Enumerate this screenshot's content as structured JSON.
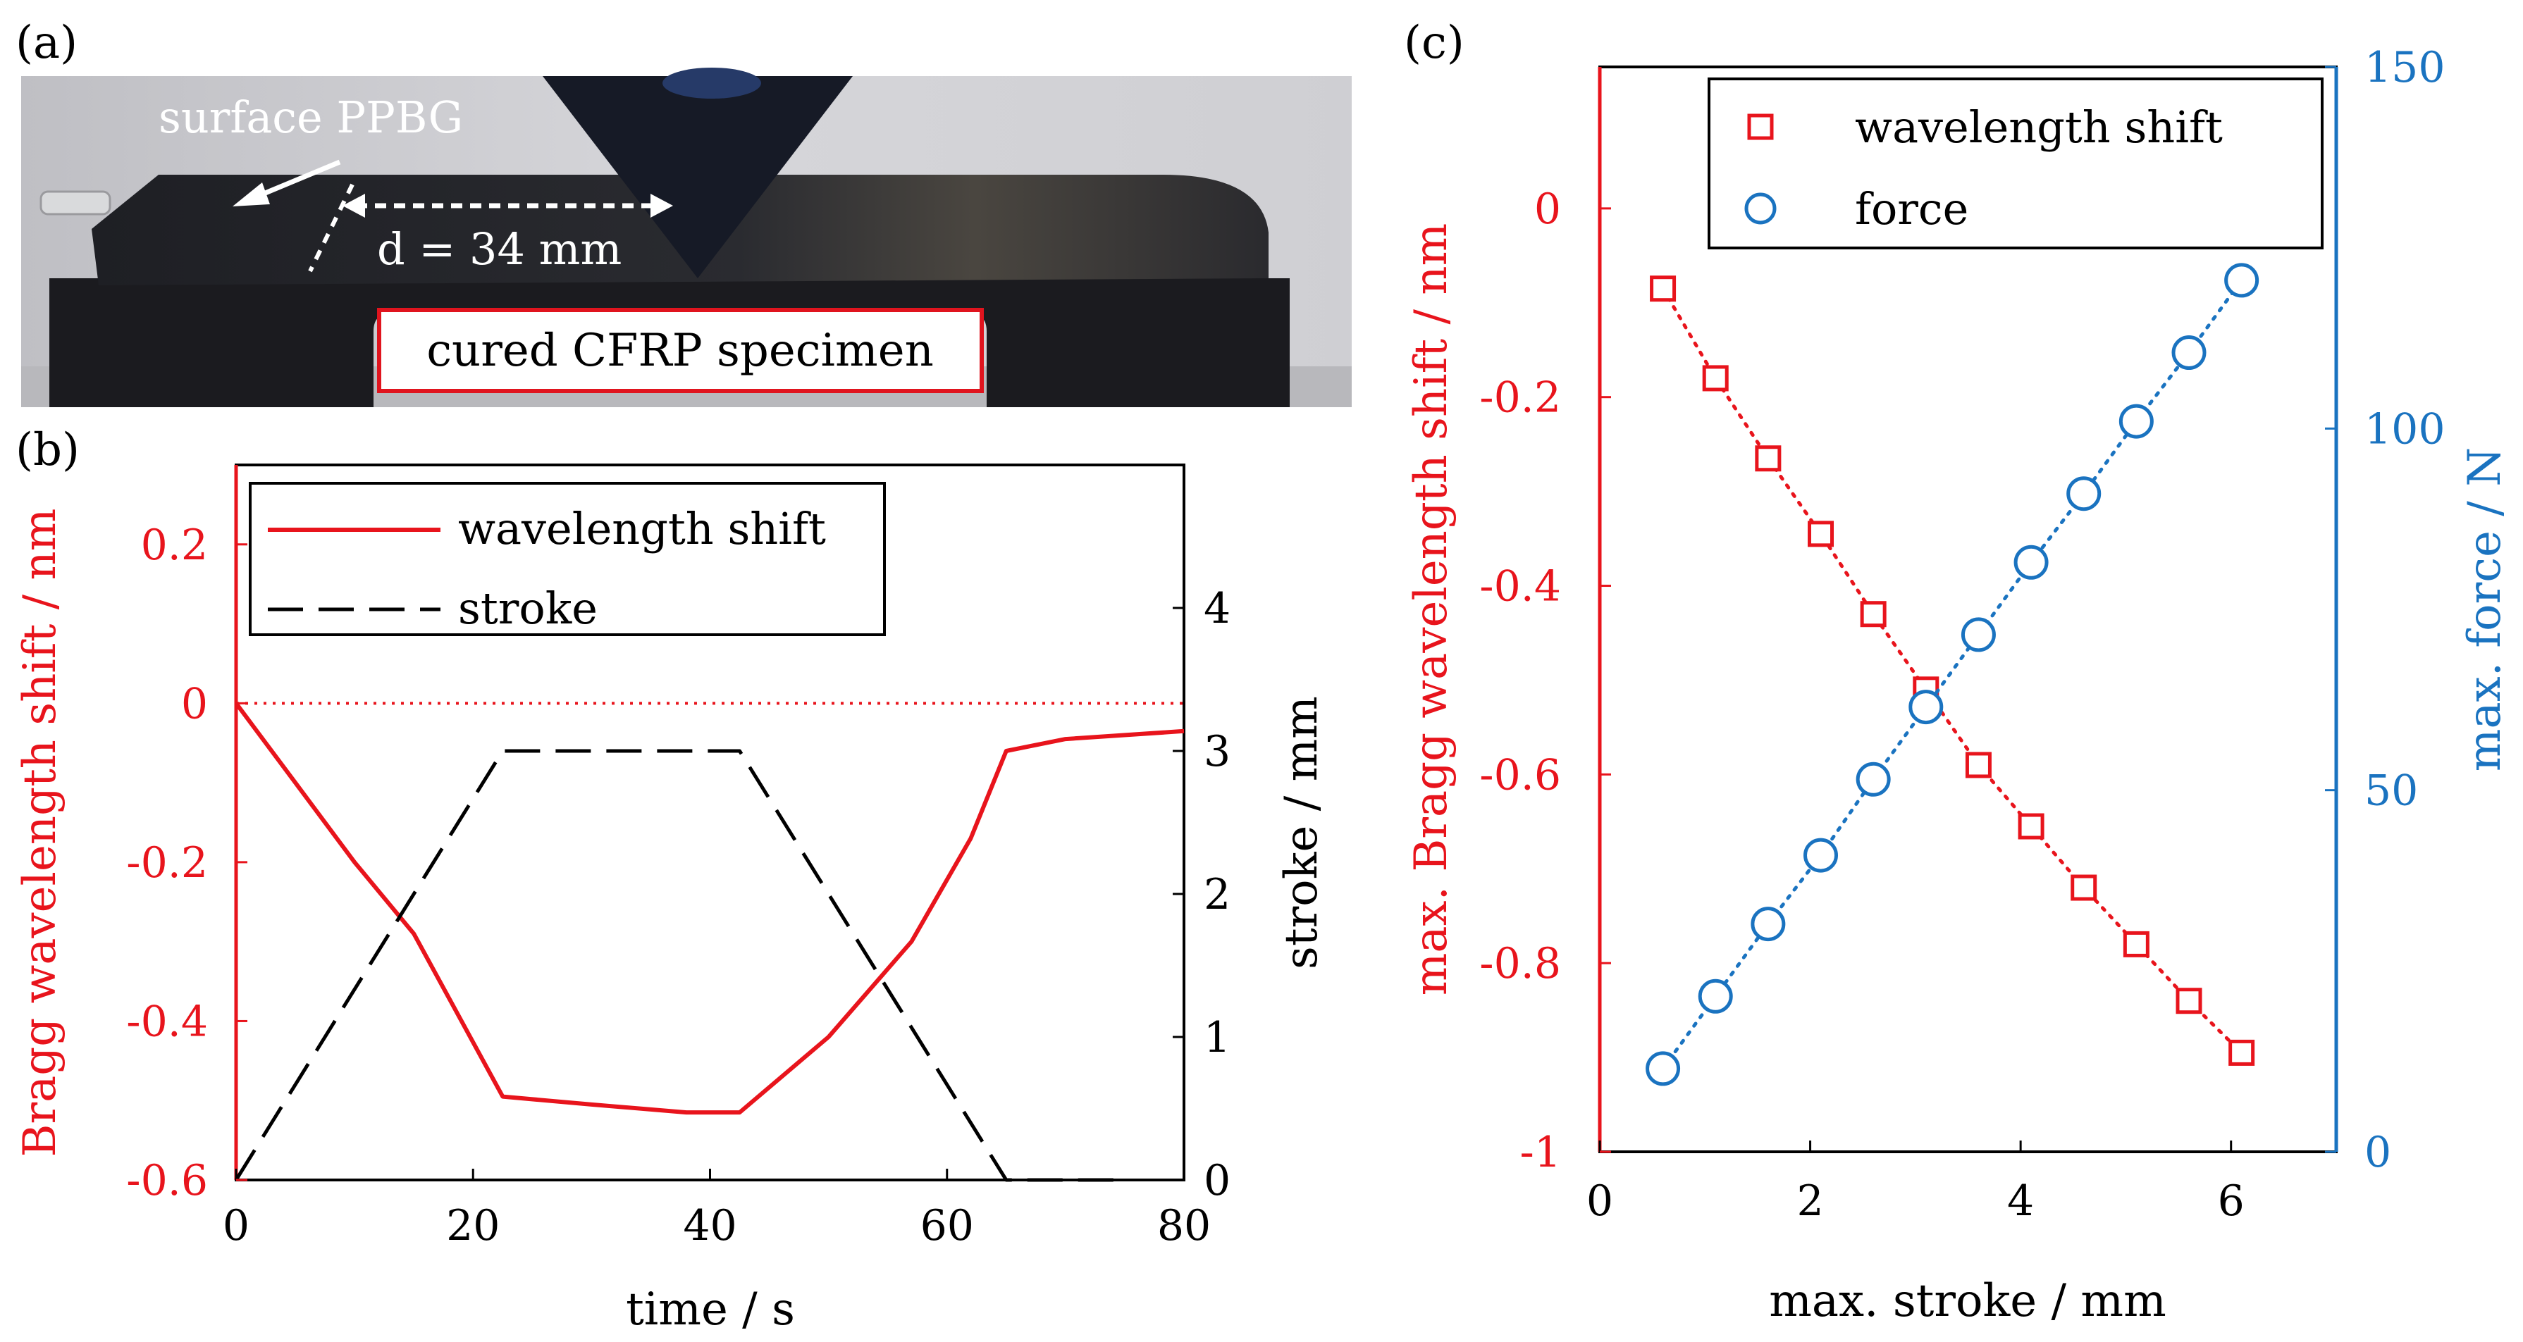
{
  "panel_labels": {
    "a": "(a)",
    "b": "(b)",
    "c": "(c)"
  },
  "photo": {
    "annotations": {
      "surface_label": "surface PPBG",
      "distance_label": "d = 34 mm",
      "specimen_label": "cured CFRP specimen"
    },
    "colors": {
      "label_border": "#e0141e",
      "background": "#c8c8cc",
      "fixture": "#1a1a1e"
    }
  },
  "chart_data": [
    {
      "panel": "(b)",
      "type": "line",
      "xlabel": "time / s",
      "ylabel": "Bragg wavelength shift / nm",
      "y2label": "stroke / mm",
      "xlim": [
        0,
        80
      ],
      "ylim": [
        -0.6,
        0.3
      ],
      "y2lim": [
        0,
        5
      ],
      "xticks": [
        0,
        20,
        40,
        60,
        80
      ],
      "yticks": [
        -0.6,
        -0.4,
        -0.2,
        0,
        0.2
      ],
      "ytick_labels": [
        "-0.6",
        "-0.4",
        "-0.2",
        "0",
        "0.2"
      ],
      "y2ticks": [
        0,
        1,
        2,
        3,
        4
      ],
      "legend": {
        "position": "top-left",
        "entries": [
          "wavelength shift",
          "stroke"
        ]
      },
      "series": [
        {
          "name": "wavelength shift",
          "axis": "left",
          "color": "#e8141c",
          "style": "solid",
          "x": [
            0,
            5,
            10,
            15,
            22.5,
            30,
            38,
            42.5,
            50,
            57,
            62,
            65,
            70,
            80
          ],
          "y": [
            0.0,
            -0.1,
            -0.2,
            -0.29,
            -0.495,
            -0.505,
            -0.515,
            -0.515,
            -0.42,
            -0.3,
            -0.17,
            -0.06,
            -0.045,
            -0.035
          ]
        },
        {
          "name": "stroke",
          "axis": "right",
          "color": "#000000",
          "style": "dashed",
          "x": [
            0,
            22.5,
            42.5,
            65,
            75
          ],
          "y": [
            0,
            3.0,
            3.0,
            0,
            0
          ]
        }
      ],
      "reference_line": {
        "axis": "left",
        "y": 0,
        "style": "dotted",
        "color": "#e8141c"
      },
      "colors": {
        "left_axis": "#e8141c",
        "right_axis": "#000000"
      }
    },
    {
      "panel": "(c)",
      "type": "scatter",
      "xlabel": "max. stroke / mm",
      "ylabel": "max. Bragg wavelength shift / nm",
      "y2label": "max. force / N",
      "xlim": [
        0,
        7
      ],
      "ylim": [
        -1,
        0.15
      ],
      "y2lim": [
        0,
        150
      ],
      "xticks": [
        0,
        2,
        4,
        6
      ],
      "yticks": [
        -1,
        -0.8,
        -0.6,
        -0.4,
        -0.2,
        0
      ],
      "ytick_labels": [
        "-1",
        "-0.8",
        "-0.6",
        "-0.4",
        "-0.2",
        "0"
      ],
      "y2ticks": [
        0,
        50,
        100,
        150
      ],
      "legend": {
        "position": "top-right",
        "entries": [
          "wavelength shift",
          "force"
        ]
      },
      "series": [
        {
          "name": "wavelength shift",
          "axis": "left",
          "marker": "square",
          "color": "#e8141c",
          "x": [
            0.6,
            1.1,
            1.6,
            2.1,
            2.6,
            3.1,
            3.6,
            4.1,
            4.6,
            5.1,
            5.6,
            6.1
          ],
          "y": [
            -0.085,
            -0.18,
            -0.265,
            -0.345,
            -0.43,
            -0.51,
            -0.59,
            -0.655,
            -0.72,
            -0.78,
            -0.84,
            -0.895
          ]
        },
        {
          "name": "force",
          "axis": "right",
          "marker": "circle",
          "color": "#1a73c0",
          "x": [
            0.6,
            1.1,
            1.6,
            2.1,
            2.6,
            3.1,
            3.6,
            4.1,
            4.6,
            5.1,
            5.6,
            6.1
          ],
          "y": [
            11.5,
            21.5,
            31.5,
            41,
            51.5,
            61.5,
            71.5,
            81.5,
            91,
            101,
            110.5,
            120.5
          ]
        }
      ],
      "colors": {
        "left_axis": "#e8141c",
        "right_axis": "#1a73c0"
      }
    }
  ]
}
